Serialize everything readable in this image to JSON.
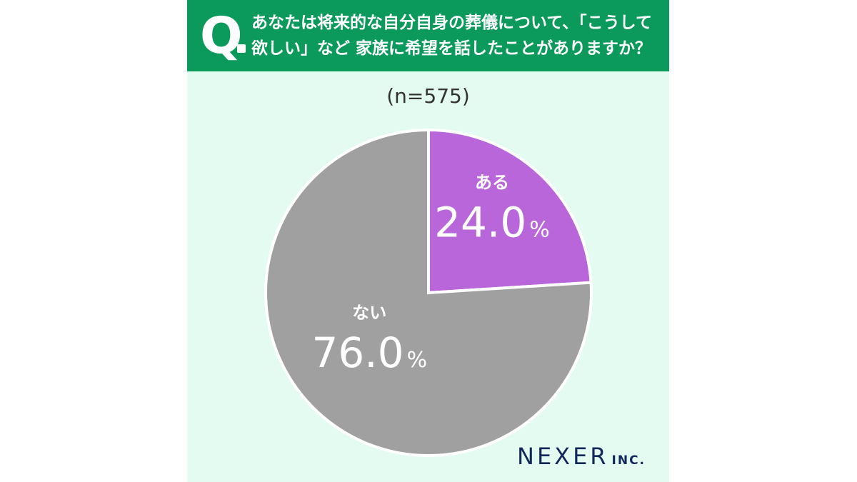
{
  "header": {
    "q_mark": "Q",
    "question_lines": [
      "あなたは将来的な自分自身の葬儀について、「こうして",
      "欲しい」など 家族に希望を話したことがありますか？"
    ]
  },
  "sample_label": "(n=575)",
  "logo": {
    "main": "NEXER",
    "suffix": "INC."
  },
  "colors": {
    "header": "#0c9a5c",
    "background": "#e3fbf0",
    "aru": "#b866da",
    "nai": "#a0a0a0"
  },
  "chart_data": {
    "type": "pie",
    "title": "",
    "slices": [
      {
        "label": "ある",
        "value": 24.0,
        "display": "24.0",
        "unit": "%",
        "color": "#b866da"
      },
      {
        "label": "ない",
        "value": 76.0,
        "display": "76.0",
        "unit": "%",
        "color": "#a0a0a0"
      }
    ]
  }
}
